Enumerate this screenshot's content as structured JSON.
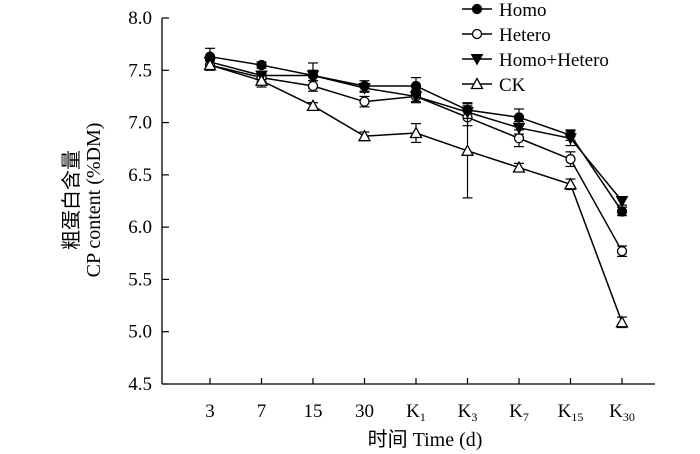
{
  "chart_data": {
    "type": "line",
    "title": "",
    "ylabel_cn": "粗蛋白含量",
    "ylabel": "CP content (%DM)",
    "xlabel_cn": "时间",
    "xlabel": "Time (d)",
    "ylim": [
      4.5,
      8.0
    ],
    "yticks": [
      "4.5",
      "5.0",
      "5.5",
      "6.0",
      "6.5",
      "7.0",
      "7.5",
      "8.0"
    ],
    "categories": [
      {
        "main": "3",
        "sub": ""
      },
      {
        "main": "7",
        "sub": ""
      },
      {
        "main": "15",
        "sub": ""
      },
      {
        "main": "30",
        "sub": ""
      },
      {
        "main": "K",
        "sub": "1"
      },
      {
        "main": "K",
        "sub": "3"
      },
      {
        "main": "K",
        "sub": "7"
      },
      {
        "main": "K",
        "sub": "15"
      },
      {
        "main": "K",
        "sub": "30"
      }
    ],
    "legend_position": "top-right",
    "series": [
      {
        "name": "Homo",
        "marker": "circle-filled",
        "values": [
          7.63,
          7.55,
          7.45,
          7.35,
          7.35,
          7.12,
          7.05,
          6.88,
          6.15
        ],
        "errors": [
          0.08,
          0.03,
          0.12,
          0.05,
          0.08,
          0.07,
          0.08,
          0.05,
          0.04
        ]
      },
      {
        "name": "Hetero",
        "marker": "circle-open",
        "values": [
          7.55,
          7.43,
          7.35,
          7.2,
          7.25,
          7.05,
          6.85,
          6.65,
          5.77
        ],
        "errors": [
          0.05,
          0.04,
          0.05,
          0.05,
          0.06,
          0.08,
          0.08,
          0.07,
          0.05
        ]
      },
      {
        "name": "Homo+Hetero",
        "marker": "triangle-down-filled",
        "values": [
          7.58,
          7.45,
          7.45,
          7.33,
          7.25,
          7.1,
          6.95,
          6.85,
          6.25
        ],
        "errors": [
          0.05,
          0.04,
          0.05,
          0.04,
          0.05,
          0.06,
          0.06,
          0.07,
          0.04
        ]
      },
      {
        "name": "CK",
        "marker": "triangle-up-open",
        "values": [
          7.55,
          7.4,
          7.16,
          6.87,
          6.9,
          6.73,
          6.57,
          6.41,
          5.09
        ],
        "errors": [
          0.04,
          0.06,
          0.03,
          0.04,
          0.09,
          0.45,
          0.04,
          0.05,
          0.05
        ]
      }
    ]
  }
}
